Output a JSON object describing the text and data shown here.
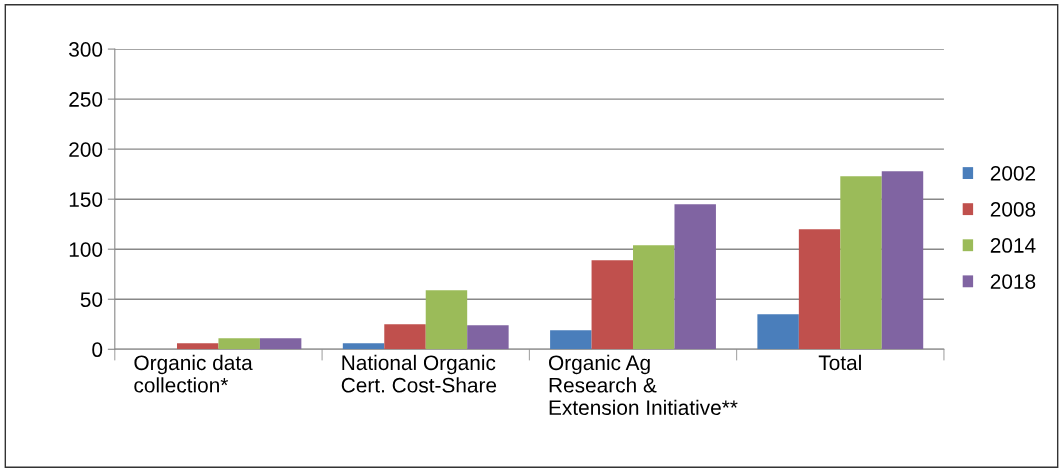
{
  "chart_data": {
    "type": "bar",
    "categories": [
      "Organic data\ncollection*",
      "National Organic\nCert. Cost-Share",
      "Organic Ag\nResearch &\nExtension Initiative**",
      "Total"
    ],
    "series": [
      {
        "name": "2002",
        "color": "#4a7ebb",
        "values": [
          0,
          6,
          19,
          35
        ]
      },
      {
        "name": "2008",
        "color": "#c0504d",
        "values": [
          6,
          25,
          89,
          120
        ]
      },
      {
        "name": "2014",
        "color": "#9bbb59",
        "values": [
          11,
          59,
          104,
          173
        ]
      },
      {
        "name": "2018",
        "color": "#8064a2",
        "values": [
          11,
          24,
          145,
          178
        ]
      }
    ],
    "ylim": [
      0,
      300
    ],
    "yticks": [
      0,
      50,
      100,
      150,
      200,
      250,
      300
    ],
    "grid": "y",
    "legend": "right"
  }
}
